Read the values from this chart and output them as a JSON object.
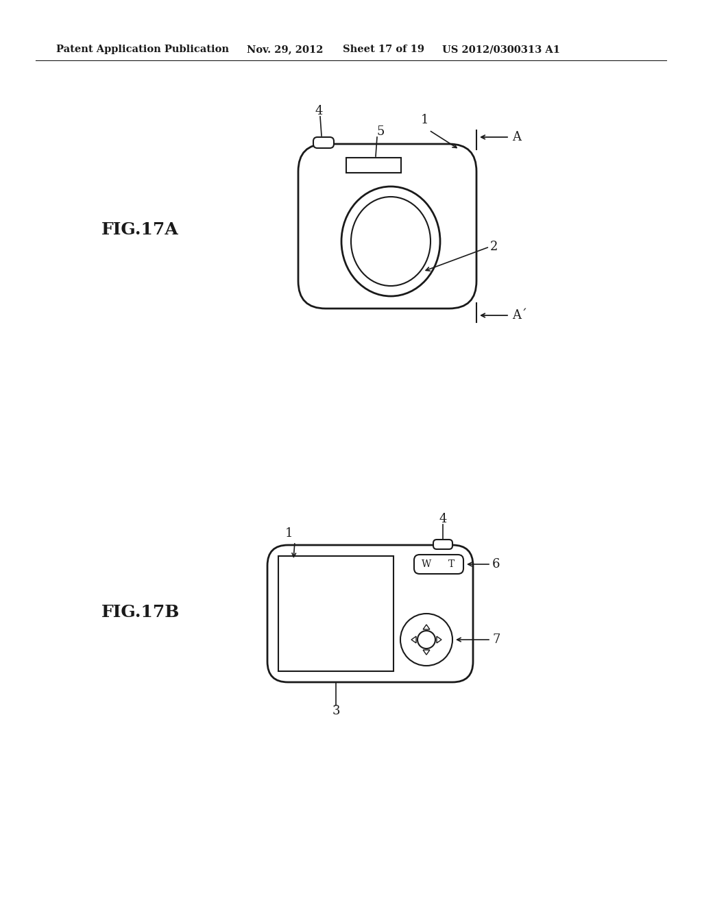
{
  "bg_color": "#ffffff",
  "line_color": "#1a1a1a",
  "header_text": "Patent Application Publication",
  "header_date": "Nov. 29, 2012",
  "header_sheet": "Sheet 17 of 19",
  "header_patent": "US 2012/0300313 A1",
  "fig17a_label": "FIG.17A",
  "fig17b_label": "FIG.17B",
  "label_1a": "1",
  "label_2": "2",
  "label_3": "3",
  "label_4a": "4",
  "label_5": "5",
  "label_A": "A",
  "label_Aprime": "A´",
  "label_1b": "1",
  "label_4b": "4",
  "label_6": "6",
  "label_7": "7",
  "label_W": "W",
  "label_T": "T"
}
